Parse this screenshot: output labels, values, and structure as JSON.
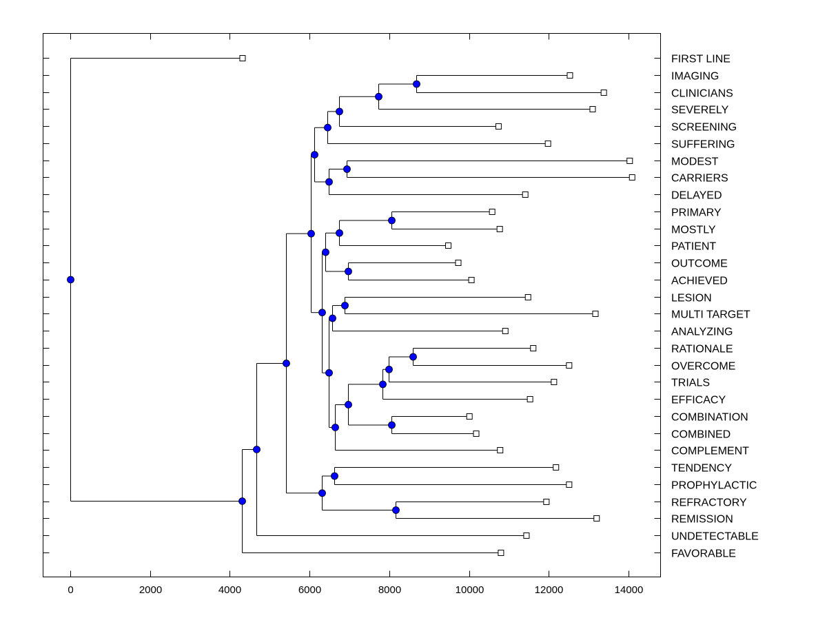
{
  "chart_data": {
    "type": "dendrogram",
    "title": "",
    "xlabel": "",
    "ylabel": "",
    "xlim": [
      -700,
      14800
    ],
    "x_ticks": [
      0,
      2000,
      4000,
      6000,
      8000,
      10000,
      12000,
      14000
    ],
    "x_tick_labels": [
      "0",
      "2000",
      "4000",
      "6000",
      "8000",
      "10000",
      "12000",
      "14000"
    ],
    "grid": false,
    "orientation": "horizontal",
    "leaf_marker": "open-square",
    "node_marker": "filled-circle",
    "node_color": "#0000ff",
    "line_color": "#000000",
    "leaves": [
      {
        "label": "FIRST LINE",
        "x": 4320
      },
      {
        "label": "IMAGING",
        "x": 12530
      },
      {
        "label": "CLINICIANS",
        "x": 13380
      },
      {
        "label": "SEVERELY",
        "x": 13100
      },
      {
        "label": "SCREENING",
        "x": 10740
      },
      {
        "label": "SUFFERING",
        "x": 11980
      },
      {
        "label": "MODEST",
        "x": 14030
      },
      {
        "label": "CARRIERS",
        "x": 14090
      },
      {
        "label": "DELAYED",
        "x": 11410
      },
      {
        "label": "PRIMARY",
        "x": 10580
      },
      {
        "label": "MOSTLY",
        "x": 10770
      },
      {
        "label": "PATIENT",
        "x": 9480
      },
      {
        "label": "OUTCOME",
        "x": 9730
      },
      {
        "label": "ACHIEVED",
        "x": 10060
      },
      {
        "label": "LESION",
        "x": 11480
      },
      {
        "label": "MULTI TARGET",
        "x": 13170
      },
      {
        "label": "ANALYZING",
        "x": 10910
      },
      {
        "label": "RATIONALE",
        "x": 11610
      },
      {
        "label": "OVERCOME",
        "x": 12510
      },
      {
        "label": "TRIALS",
        "x": 12130
      },
      {
        "label": "EFFICACY",
        "x": 11530
      },
      {
        "label": "COMBINATION",
        "x": 10010
      },
      {
        "label": "COMBINED",
        "x": 10180
      },
      {
        "label": "COMPLEMENT",
        "x": 10780
      },
      {
        "label": "TENDENCY",
        "x": 12180
      },
      {
        "label": "PROPHYLACTIC",
        "x": 12510
      },
      {
        "label": "REFRACTORY",
        "x": 11940
      },
      {
        "label": "REMISSION",
        "x": 13200
      },
      {
        "label": "UNDETECTABLE",
        "x": 11440
      },
      {
        "label": "FAVORABLE",
        "x": 10800
      }
    ],
    "tree": {
      "x": 0,
      "children": [
        {
          "leaf": 0
        },
        {
          "x": 4300,
          "children": [
            {
              "x": 4670,
              "children": [
                {
                  "x": 5410,
                  "children": [
                    {
                      "x": 6040,
                      "children": [
                        {
                          "x": 6110,
                          "children": [
                            {
                              "x": 6450,
                              "children": [
                                {
                                  "x": 6740,
                                  "children": [
                                    {
                                      "x": 7730,
                                      "children": [
                                        {
                                          "x": 8680,
                                          "children": [
                                            {
                                              "leaf": 1
                                            },
                                            {
                                              "leaf": 2
                                            }
                                          ]
                                        },
                                        {
                                          "leaf": 3
                                        }
                                      ]
                                    },
                                    {
                                      "leaf": 4
                                    }
                                  ]
                                },
                                {
                                  "leaf": 5
                                }
                              ]
                            },
                            {
                              "x": 6480,
                              "children": [
                                {
                                  "x": 6930,
                                  "children": [
                                    {
                                      "leaf": 6
                                    },
                                    {
                                      "leaf": 7
                                    }
                                  ]
                                },
                                {
                                  "leaf": 8
                                }
                              ]
                            }
                          ]
                        },
                        {
                          "x": 6310,
                          "children": [
                            {
                              "x": 6390,
                              "children": [
                                {
                                  "x": 6740,
                                  "children": [
                                    {
                                      "x": 8050,
                                      "children": [
                                        {
                                          "leaf": 9
                                        },
                                        {
                                          "leaf": 10
                                        }
                                      ]
                                    },
                                    {
                                      "leaf": 11
                                    }
                                  ]
                                },
                                {
                                  "x": 6960,
                                  "children": [
                                    {
                                      "leaf": 12
                                    },
                                    {
                                      "leaf": 13
                                    }
                                  ]
                                }
                              ]
                            },
                            {
                              "x": 6480,
                              "children": [
                                {
                                  "x": 6570,
                                  "children": [
                                    {
                                      "x": 6880,
                                      "children": [
                                        {
                                          "leaf": 14
                                        },
                                        {
                                          "leaf": 15
                                        }
                                      ]
                                    },
                                    {
                                      "leaf": 16
                                    }
                                  ]
                                },
                                {
                                  "x": 6640,
                                  "children": [
                                    {
                                      "x": 6960,
                                      "children": [
                                        {
                                          "x": 7830,
                                          "children": [
                                            {
                                              "x": 7990,
                                              "children": [
                                                {
                                                  "x": 8590,
                                                  "children": [
                                                    {
                                                      "leaf": 17
                                                    },
                                                    {
                                                      "leaf": 18
                                                    }
                                                  ]
                                                },
                                                {
                                                  "leaf": 19
                                                }
                                              ]
                                            },
                                            {
                                              "leaf": 20
                                            }
                                          ]
                                        },
                                        {
                                          "x": 8050,
                                          "children": [
                                            {
                                              "leaf": 21
                                            },
                                            {
                                              "leaf": 22
                                            }
                                          ]
                                        }
                                      ]
                                    },
                                    {
                                      "leaf": 23
                                    }
                                  ]
                                }
                              ]
                            }
                          ]
                        }
                      ]
                    },
                    {
                      "x": 6300,
                      "children": [
                        {
                          "x": 6620,
                          "children": [
                            {
                              "leaf": 24
                            },
                            {
                              "leaf": 25
                            }
                          ]
                        },
                        {
                          "x": 8160,
                          "children": [
                            {
                              "leaf": 26
                            },
                            {
                              "leaf": 27
                            }
                          ]
                        }
                      ]
                    }
                  ]
                },
                {
                  "leaf": 28
                }
              ]
            },
            {
              "leaf": 29
            }
          ]
        }
      ]
    }
  }
}
